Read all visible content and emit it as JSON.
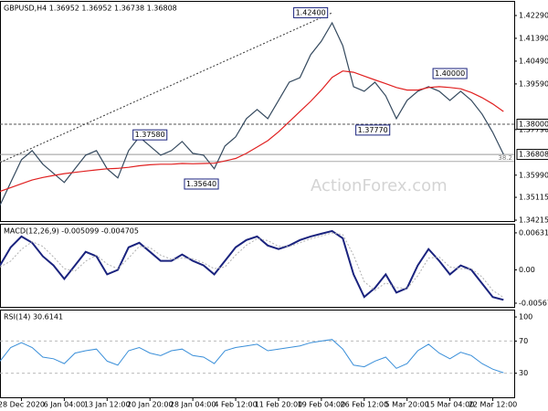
{
  "chart_data": [
    {
      "type": "line",
      "title": "GBPUSD,H4  1.36952 1.36952 1.36738 1.36808",
      "watermark": "ActionForex.com",
      "x": [
        0,
        1,
        2,
        3,
        4,
        5,
        6,
        7,
        8,
        9,
        10,
        11,
        12,
        13,
        14,
        15,
        16,
        17,
        18,
        19,
        20,
        21,
        22,
        23,
        24,
        25,
        26,
        27,
        28,
        29,
        30,
        31,
        32,
        33,
        34,
        35,
        36,
        37,
        38,
        39,
        40,
        41,
        42,
        43,
        44,
        45,
        46,
        47
      ],
      "xlim": [
        0,
        48
      ],
      "xticks": [
        {
          "value": 2,
          "label": "28 Dec 2020"
        },
        {
          "value": 6,
          "label": "6 Jan 04:00"
        },
        {
          "value": 10,
          "label": "13 Jan 12:00"
        },
        {
          "value": 14,
          "label": "20 Jan 20:00"
        },
        {
          "value": 18,
          "label": "28 Jan 04:00"
        },
        {
          "value": 22,
          "label": "4 Feb 12:00"
        },
        {
          "value": 26,
          "label": "11 Feb 20:00"
        },
        {
          "value": 30,
          "label": "19 Feb 04:00"
        },
        {
          "value": 34,
          "label": "26 Feb 12:00"
        },
        {
          "value": 38,
          "label": "5 Mar 20:00"
        },
        {
          "value": 42,
          "label": "15 Mar 04:00"
        },
        {
          "value": 46,
          "label": "22 Mar 12:00"
        }
      ],
      "ylim": [
        1.3418,
        1.4283
      ],
      "yticks": [
        {
          "value": 1.4229,
          "label": "1.42290"
        },
        {
          "value": 1.4139,
          "label": "1.41390"
        },
        {
          "value": 1.4049,
          "label": "1.40490"
        },
        {
          "value": 1.3959,
          "label": "1.39590"
        },
        {
          "value": 1.3779,
          "label": "1.37790"
        },
        {
          "value": 1.3599,
          "label": "1.35990"
        },
        {
          "value": 1.35115,
          "label": "1.35115"
        },
        {
          "value": 1.34215,
          "label": "1.34215"
        }
      ],
      "series": [
        {
          "color": "#34495e",
          "values": [
            1.348,
            1.357,
            1.366,
            1.3696,
            1.3642,
            1.3606,
            1.357,
            1.3624,
            1.3678,
            1.3696,
            1.3624,
            1.3588,
            1.3696,
            1.375,
            1.3714,
            1.3678,
            1.3696,
            1.3732,
            1.3685,
            1.3678,
            1.3624,
            1.3714,
            1.375,
            1.3822,
            1.3858,
            1.3822,
            1.3894,
            1.3966,
            1.3984,
            1.4074,
            1.4128,
            1.42,
            1.411,
            1.3948,
            1.393,
            1.3966,
            1.3912,
            1.3822,
            1.3894,
            1.393,
            1.3948,
            1.393,
            1.3894,
            1.393,
            1.3894,
            1.384,
            1.3768,
            1.3681
          ]
        },
        {
          "color": "#e02020",
          "values": [
            1.3535,
            1.355,
            1.3565,
            1.358,
            1.359,
            1.3598,
            1.3605,
            1.361,
            1.3615,
            1.362,
            1.3624,
            1.3626,
            1.363,
            1.3636,
            1.364,
            1.3642,
            1.3642,
            1.3645,
            1.3644,
            1.3645,
            1.3646,
            1.3655,
            1.3665,
            1.3685,
            1.371,
            1.3735,
            1.377,
            1.381,
            1.385,
            1.389,
            1.3935,
            1.3985,
            1.401,
            1.4005,
            1.399,
            1.3975,
            1.396,
            1.3945,
            1.3935,
            1.3935,
            1.3945,
            1.3948,
            1.3945,
            1.394,
            1.3925,
            1.3905,
            1.388,
            1.385
          ]
        }
      ],
      "trendline": {
        "x": [
          0,
          31
        ],
        "values": [
          1.3649,
          1.424
        ]
      },
      "annotations": [
        {
          "x": 29,
          "value": 1.424,
          "label": "1.42400"
        },
        {
          "x": 42,
          "value": 1.4,
          "label": "1.40000"
        },
        {
          "x": 34.8,
          "value": 1.3777,
          "label": "1.37770"
        },
        {
          "x": 14,
          "value": 1.3758,
          "label": "1.37580"
        },
        {
          "x": 18.8,
          "value": 1.3564,
          "label": "1.35640"
        }
      ],
      "levels": [
        {
          "value": 1.38,
          "label": "1.38000",
          "style": "dashed"
        },
        {
          "value": 1.36808,
          "label": "1.36808",
          "style": "solid"
        }
      ],
      "fib_level": {
        "value": 1.3653,
        "label": "38.2"
      }
    },
    {
      "type": "line",
      "title": "MACD(12,26,9) -0.005099 -0.004705",
      "ylim": [
        -0.0063,
        0.0077
      ],
      "yticks": [
        {
          "value": 0.00631,
          "label": "0.00631"
        },
        {
          "value": 0,
          "label": "0.00"
        },
        {
          "value": -0.005671,
          "label": "-0.005671"
        }
      ],
      "series": [
        {
          "color": "#1a237e",
          "width": 2,
          "values": [
            0.00077,
            0.00385,
            0.0057,
            0.00462,
            0.00231,
            0.00077,
            -0.00154,
            0.00077,
            0.00308,
            0.00231,
            -0.00077,
            0,
            0.00385,
            0.00462,
            0.00308,
            0.00154,
            0.00154,
            0.00262,
            0.00154,
            0.00077,
            -0.00077,
            0.00154,
            0.00385,
            0.00508,
            0.0057,
            0.00416,
            0.00354,
            0.00416,
            0.00508,
            0.0057,
            0.00616,
            0.00662,
            0.00539,
            -0.00077,
            -0.00462,
            -0.00308,
            -0.00077,
            -0.00385,
            -0.00308,
            0.00077,
            0.00354,
            0.00154,
            -0.00077,
            0.00077,
            0,
            -0.00231,
            -0.00462,
            -0.005099
          ]
        },
        {
          "color": "#b0b0b0",
          "width": 1,
          "dash": true,
          "values": [
            0.0005,
            0.0015,
            0.0035,
            0.0048,
            0.004,
            0.0022,
            0.0002,
            -0.0002,
            0.0015,
            0.0025,
            0.001,
            0.0002,
            0.002,
            0.004,
            0.0038,
            0.0025,
            0.0018,
            0.002,
            0.0019,
            0.0012,
            0.0002,
            0.0005,
            0.0025,
            0.0042,
            0.0053,
            0.005,
            0.004,
            0.004,
            0.0046,
            0.0053,
            0.0058,
            0.0063,
            0.006,
            0.0025,
            -0.002,
            -0.0035,
            -0.0022,
            -0.003,
            -0.0032,
            -0.001,
            0.002,
            0.0022,
            0.0005,
            0.0002,
            0.0002,
            -0.0012,
            -0.0035,
            -0.004705
          ]
        }
      ]
    },
    {
      "type": "line",
      "title": "RSI(14) 30.6141",
      "ylim": [
        0,
        108
      ],
      "yticks": [
        100,
        70,
        30
      ],
      "levels": [
        70,
        30
      ],
      "series": [
        {
          "color": "#3a8fd9",
          "width": 1,
          "values": [
            45,
            62,
            68,
            62,
            50,
            48,
            42,
            55,
            58,
            60,
            45,
            40,
            58,
            62,
            55,
            52,
            58,
            60,
            52,
            50,
            42,
            58,
            62,
            64,
            66,
            58,
            60,
            62,
            64,
            68,
            70,
            72,
            60,
            40,
            38,
            45,
            50,
            36,
            42,
            58,
            66,
            55,
            48,
            56,
            52,
            42,
            35,
            30.6141
          ]
        }
      ]
    }
  ]
}
